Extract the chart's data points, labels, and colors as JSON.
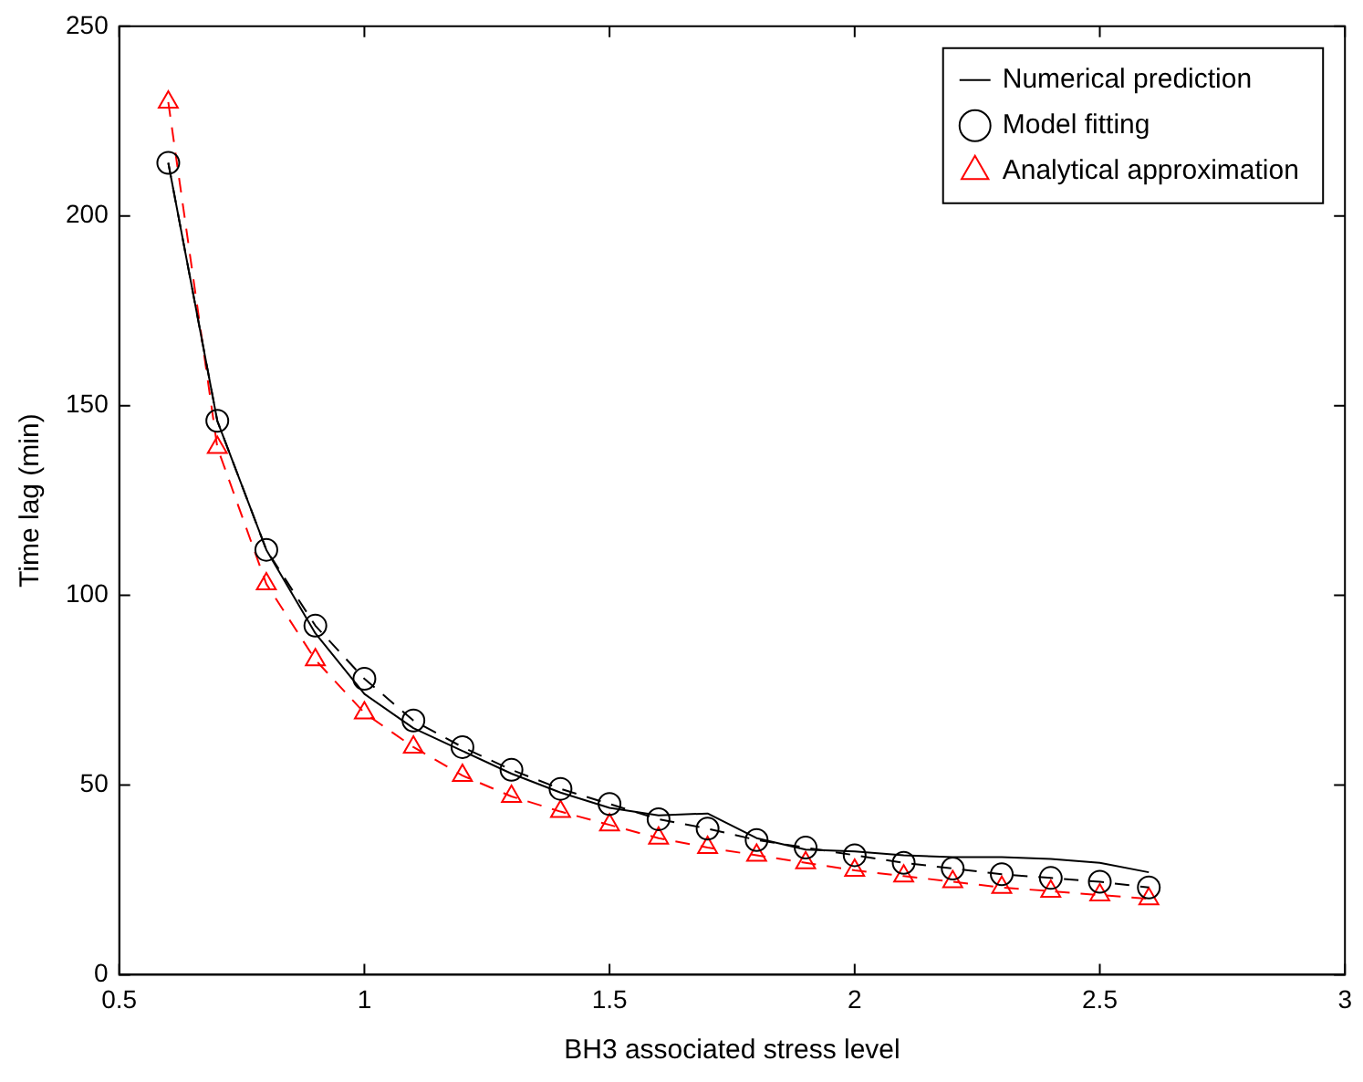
{
  "chart_data": {
    "type": "line",
    "xlabel": "BH3 associated stress level",
    "ylabel": "Time lag (min)",
    "x": [
      0.6,
      0.7,
      0.8,
      0.9,
      1.0,
      1.1,
      1.2,
      1.3,
      1.4,
      1.5,
      1.6,
      1.7,
      1.8,
      1.9,
      2.0,
      2.1,
      2.2,
      2.3,
      2.4,
      2.5,
      2.6
    ],
    "series": [
      {
        "name": "Numerical prediction",
        "color": "#000000",
        "marker": "none",
        "line_style": "solid",
        "values": [
          214,
          146,
          112,
          90,
          74,
          65,
          59,
          53,
          48,
          44,
          42,
          42.5,
          36,
          33,
          32.5,
          31.5,
          31,
          31,
          30.5,
          29.5,
          27
        ]
      },
      {
        "name": "Model fitting",
        "color": "#000000",
        "marker": "circle",
        "line_style": "dashed",
        "values": [
          214,
          146,
          112,
          92,
          78,
          67,
          60,
          54,
          49,
          45,
          41,
          38.5,
          35.5,
          33.5,
          31.5,
          29.5,
          28,
          26.5,
          25.5,
          24.5,
          23
        ]
      },
      {
        "name": "Analytical approximation",
        "color": "#ff0000",
        "marker": "triangle",
        "line_style": "dashed",
        "values": [
          230,
          139,
          103,
          83,
          69,
          60,
          52.5,
          47,
          43,
          39.5,
          36,
          33.5,
          31.5,
          29.5,
          27.5,
          26,
          24.5,
          23,
          22,
          21,
          20
        ]
      }
    ],
    "xlim": [
      0.5,
      3
    ],
    "xticks": [
      0.5,
      1,
      1.5,
      2,
      2.5,
      3
    ],
    "ylim": [
      0,
      250
    ],
    "yticks": [
      0,
      50,
      100,
      150,
      200,
      250
    ],
    "grid": false,
    "legend": "top right"
  }
}
